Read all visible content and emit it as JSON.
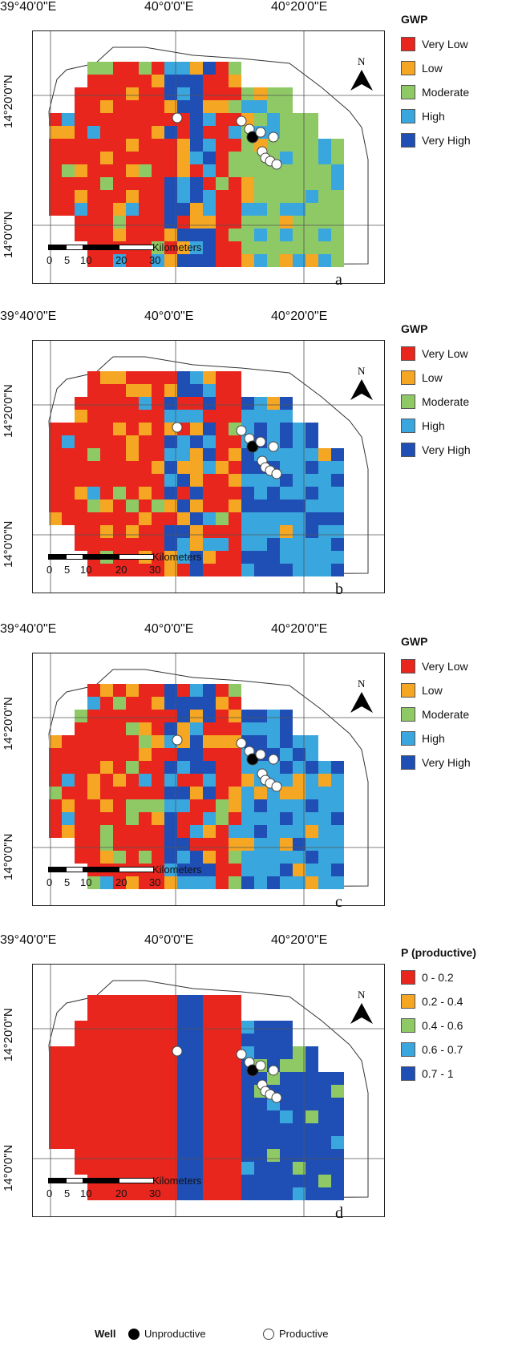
{
  "coords": {
    "lon_labels": [
      "39°40'0\"E",
      "40°0'0\"E",
      "40°20'0\"E"
    ],
    "lat_labels": [
      "14°20'0\"N",
      "14°0'0\"N"
    ]
  },
  "north_label": "N",
  "scale_bar": {
    "unit": "Kilometers",
    "ticks": [
      "0",
      "5",
      "10",
      "20",
      "30"
    ]
  },
  "palette": {
    "very_low": "#e8261e",
    "low": "#f5a623",
    "moderate": "#8fc965",
    "high": "#3aa6de",
    "very_high": "#1f4fb4"
  },
  "panels": [
    {
      "letter": "a",
      "legend": {
        "title": "GWP",
        "items": [
          {
            "label": "Very Low",
            "color": "#e8261e"
          },
          {
            "label": "Low",
            "color": "#f5a623"
          },
          {
            "label": "Moderate",
            "color": "#8fc965"
          },
          {
            "label": "High",
            "color": "#3aa6de"
          },
          {
            "label": "Very High",
            "color": "#1f4fb4"
          }
        ]
      },
      "east_class": "moderate"
    },
    {
      "letter": "b",
      "legend": {
        "title": "GWP",
        "items": [
          {
            "label": "Very Low",
            "color": "#e8261e"
          },
          {
            "label": "Low",
            "color": "#f5a623"
          },
          {
            "label": "Moderate",
            "color": "#8fc965"
          },
          {
            "label": "High",
            "color": "#3aa6de"
          },
          {
            "label": "Very High",
            "color": "#1f4fb4"
          }
        ]
      },
      "east_class": "high"
    },
    {
      "letter": "c",
      "legend": {
        "title": "GWP",
        "items": [
          {
            "label": "Very Low",
            "color": "#e8261e"
          },
          {
            "label": "Low",
            "color": "#f5a623"
          },
          {
            "label": "Moderate",
            "color": "#8fc965"
          },
          {
            "label": "High",
            "color": "#3aa6de"
          },
          {
            "label": "Very High",
            "color": "#1f4fb4"
          }
        ]
      },
      "east_class": "high"
    },
    {
      "letter": "d",
      "legend": {
        "title": "P (productive)",
        "items": [
          {
            "label": "0 - 0.2",
            "color": "#e8261e"
          },
          {
            "label": "0.2 - 0.4",
            "color": "#f5a623"
          },
          {
            "label": "0.4 - 0.6",
            "color": "#8fc965"
          },
          {
            "label": "0.6 - 0.7",
            "color": "#3aa6de"
          },
          {
            "label": "0.7 - 1",
            "color": "#1f4fb4"
          }
        ]
      },
      "east_class": "very_high"
    }
  ],
  "footer": {
    "title": "Well",
    "unproductive": "Unproductive",
    "productive": "Productive"
  }
}
